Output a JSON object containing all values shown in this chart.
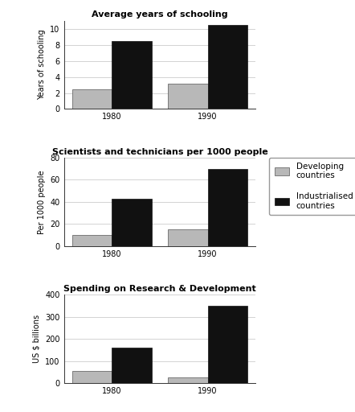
{
  "chart1": {
    "title": "Average years of schooling",
    "ylabel": "Years of schooling",
    "ylim": [
      0,
      11
    ],
    "yticks": [
      0,
      2,
      4,
      6,
      8,
      10
    ],
    "years": [
      "1980",
      "1990"
    ],
    "developing": [
      2.5,
      3.2
    ],
    "industrialised": [
      8.5,
      10.5
    ]
  },
  "chart2": {
    "title": "Scientists and technicians per 1000 people",
    "ylabel": "Per 1000 people",
    "ylim": [
      0,
      80
    ],
    "yticks": [
      0,
      20,
      40,
      60,
      80
    ],
    "years": [
      "1980",
      "1990"
    ],
    "developing": [
      10,
      15
    ],
    "industrialised": [
      43,
      70
    ]
  },
  "chart3": {
    "title": "Spending on Research & Development",
    "ylabel": "US $ billions",
    "ylim": [
      0,
      400
    ],
    "yticks": [
      0,
      100,
      200,
      300,
      400
    ],
    "years": [
      "1980",
      "1990"
    ],
    "developing": [
      55,
      25
    ],
    "industrialised": [
      160,
      350
    ]
  },
  "color_developing": "#b8b8b8",
  "color_industrialised": "#111111",
  "legend_labels": [
    "Developing\ncountries",
    "Industrialised\ncountries"
  ],
  "bar_width": 0.25,
  "fig_bgcolor": "#ffffff"
}
